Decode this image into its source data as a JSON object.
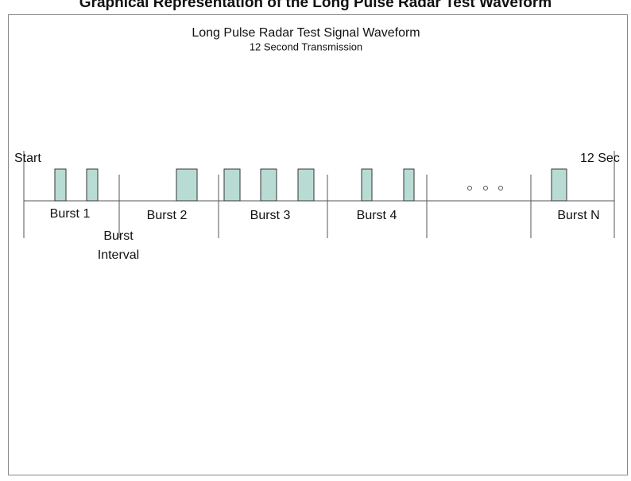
{
  "header": {
    "title": "Graphical Representation of the Long Pulse Radar Test Waveform"
  },
  "diagram": {
    "title": "Long Pulse Radar Test Signal Waveform",
    "subtitle": "12 Second Transmission",
    "start_label": "Start",
    "end_label": "12 Sec",
    "bursts": [
      "Burst 1",
      "Burst 2",
      "Burst 3",
      "Burst 4",
      "Burst N"
    ],
    "interval_label": [
      "Burst",
      "Interval"
    ]
  }
}
